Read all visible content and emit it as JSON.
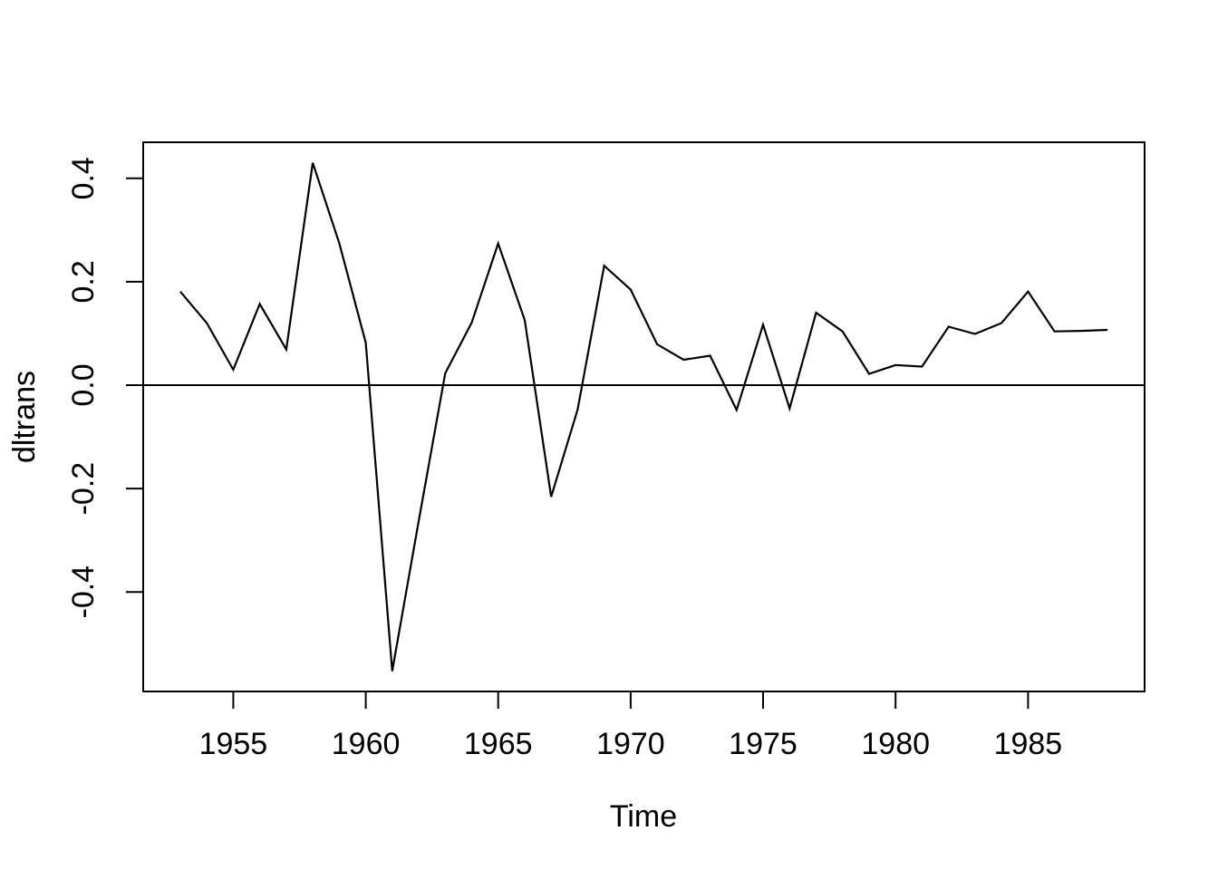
{
  "chart_data": {
    "type": "line",
    "title": "",
    "xlabel": "Time",
    "ylabel": "dltrans",
    "x": [
      1953,
      1954,
      1955,
      1956,
      1957,
      1958,
      1959,
      1960,
      1961,
      1962,
      1963,
      1964,
      1965,
      1966,
      1967,
      1968,
      1969,
      1970,
      1971,
      1972,
      1973,
      1974,
      1975,
      1976,
      1977,
      1978,
      1979,
      1980,
      1981,
      1982,
      1983,
      1984,
      1985,
      1986,
      1987,
      1988
    ],
    "series": [
      {
        "name": "dltrans",
        "color": "#000000",
        "values": [
          0.181,
          0.12,
          0.03,
          0.157,
          0.069,
          0.43,
          0.275,
          0.082,
          -0.553,
          -0.263,
          0.023,
          0.121,
          0.274,
          0.126,
          -0.216,
          -0.047,
          0.231,
          0.185,
          0.079,
          0.049,
          0.057,
          -0.048,
          0.117,
          -0.045,
          0.14,
          0.104,
          0.022,
          0.039,
          0.036,
          0.113,
          0.099,
          0.12,
          0.181,
          0.104,
          0.105,
          0.107
        ]
      }
    ],
    "x_ticks": {
      "values": [
        1955,
        1960,
        1965,
        1970,
        1975,
        1980,
        1985
      ],
      "labels": [
        "1955",
        "1960",
        "1965",
        "1970",
        "1975",
        "1980",
        "1985"
      ]
    },
    "y_ticks": {
      "values": [
        0.4,
        0.2,
        0.0,
        -0.2,
        -0.4
      ],
      "labels": [
        "0.4",
        "0.2",
        "0.0",
        "-0.2",
        "-0.4"
      ]
    },
    "xlim": [
      1951.6,
      1989.4
    ],
    "ylim": [
      -0.5925,
      0.4698
    ],
    "reference_line_y": 0,
    "grid": false,
    "legend": "none",
    "frame_color": "#000000",
    "background": "#ffffff"
  }
}
